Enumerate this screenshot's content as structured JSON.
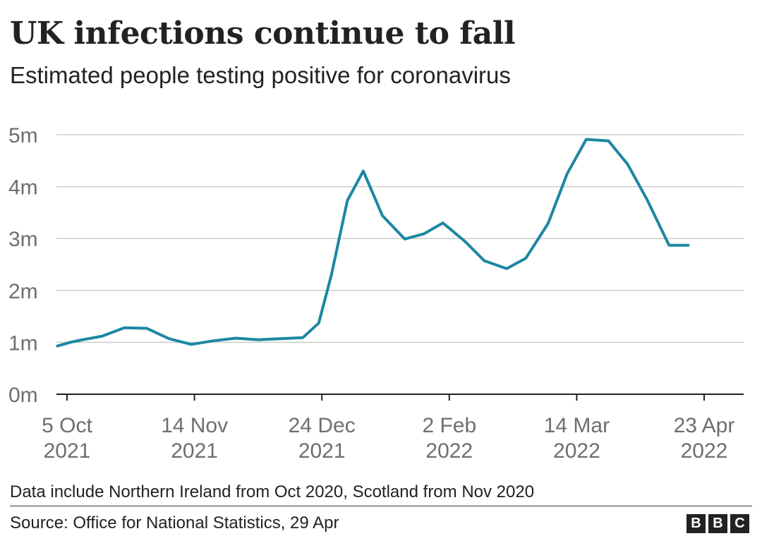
{
  "header": {
    "title": "UK infections continue to fall",
    "subtitle": "Estimated people testing positive for coronavirus"
  },
  "footer": {
    "note": "Data include Northern Ireland from Oct 2020, Scotland from Nov 2020",
    "source": "Source: Office for National Statistics, 29 Apr",
    "logo_letters": [
      "B",
      "B",
      "C"
    ]
  },
  "colors": {
    "line": "#1d87a3",
    "grid": "#cccccc",
    "axis": "#222222",
    "tick_text": "#6e6e6e"
  },
  "chart_data": {
    "type": "line",
    "title": "UK infections continue to fall",
    "subtitle": "Estimated people testing positive for coronavirus",
    "xlabel": "",
    "ylabel": "",
    "ylim": [
      0,
      5
    ],
    "y_unit": "millions",
    "y_ticks": [
      0,
      1,
      2,
      3,
      4,
      5
    ],
    "y_tick_labels": [
      "0m",
      "1m",
      "2m",
      "3m",
      "4m",
      "5m"
    ],
    "xlim_days": [
      -2,
      205
    ],
    "x_ticks": [
      {
        "day": 0,
        "label": [
          "5 Oct",
          "2021"
        ]
      },
      {
        "day": 40,
        "label": [
          "14 Nov",
          "2021"
        ]
      },
      {
        "day": 80,
        "label": [
          "24 Dec",
          "2021"
        ]
      },
      {
        "day": 120,
        "label": [
          "2 Feb",
          "2022"
        ]
      },
      {
        "day": 160,
        "label": [
          "14 Mar",
          "2022"
        ]
      },
      {
        "day": 200,
        "label": [
          "23 Apr",
          "2022"
        ]
      }
    ],
    "x_origin_date": "5 Oct 2021",
    "series": [
      {
        "name": "Estimated people testing positive",
        "x_days": [
          -3,
          1,
          4,
          11,
          18,
          25,
          32,
          39,
          46,
          53,
          60,
          67,
          74,
          79,
          83,
          88,
          93,
          99,
          106,
          112,
          118,
          125,
          131,
          138,
          144,
          151,
          157,
          163,
          170,
          176,
          182,
          189,
          195
        ],
        "values": [
          0.93,
          1.0,
          1.04,
          1.12,
          1.28,
          1.27,
          1.07,
          0.96,
          1.03,
          1.08,
          1.05,
          1.07,
          1.09,
          1.37,
          2.3,
          3.73,
          4.3,
          3.44,
          2.99,
          3.09,
          3.3,
          2.94,
          2.57,
          2.42,
          2.62,
          3.29,
          4.25,
          4.91,
          4.88,
          4.43,
          3.76,
          2.87,
          2.87
        ]
      }
    ],
    "grid": true,
    "legend": "none"
  }
}
